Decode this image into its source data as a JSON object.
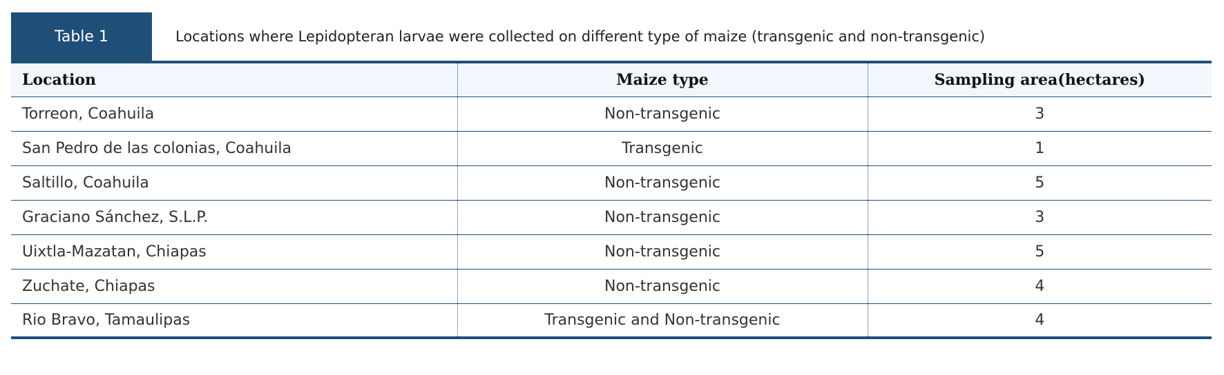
{
  "caption": {
    "label": "Table 1",
    "text": "Locations where Lepidopteran larvae were collected on different type of maize (transgenic and non-transgenic)"
  },
  "colors": {
    "accent": "#1f4e79",
    "header_bg": "#f1f7fc"
  },
  "table": {
    "headers": [
      "Location",
      "Maize type",
      "Sampling area(hectares)"
    ],
    "rows": [
      [
        "Torreon, Coahuila",
        "Non-transgenic",
        "3"
      ],
      [
        "San Pedro de las colonias, Coahuila",
        "Transgenic",
        "1"
      ],
      [
        "Saltillo, Coahuila",
        "Non-transgenic",
        "5"
      ],
      [
        "Graciano Sánchez, S.L.P.",
        "Non-transgenic",
        "3"
      ],
      [
        "Uixtla-Mazatan, Chiapas",
        "Non-transgenic",
        "5"
      ],
      [
        "Zuchate, Chiapas",
        "Non-transgenic",
        "4"
      ],
      [
        "Rio Bravo, Tamaulipas",
        "Transgenic and Non-transgenic",
        "4"
      ]
    ]
  }
}
